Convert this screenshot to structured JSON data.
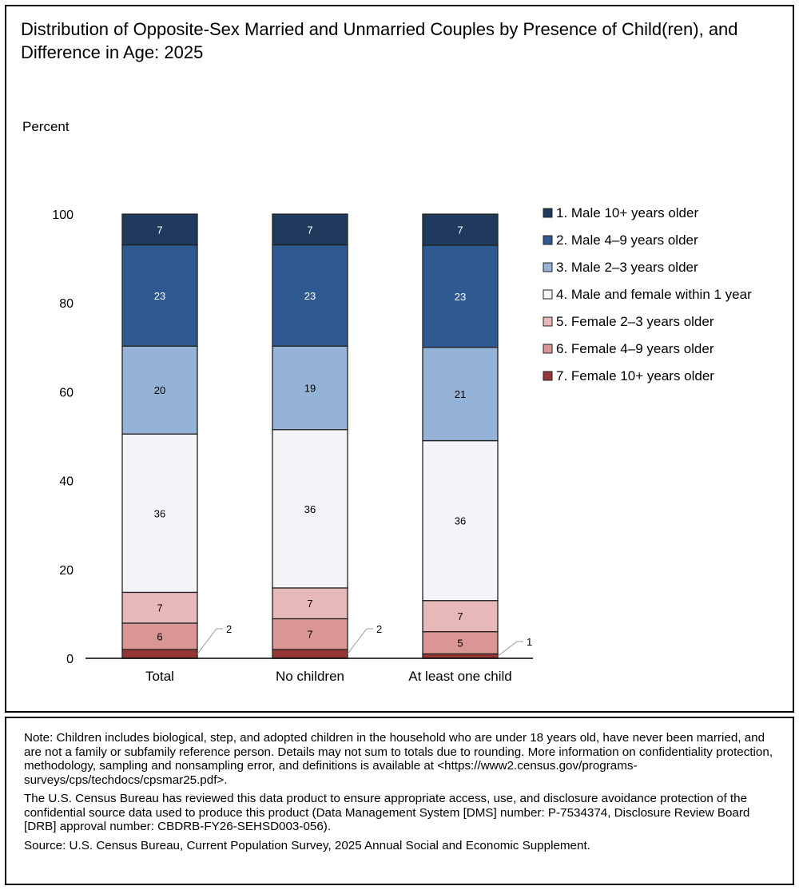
{
  "title": "Distribution of Opposite-Sex Married and Unmarried Couples by Presence of Child(ren), and Difference in Age: 2025",
  "notes": [
    "Note: Children includes biological, step, and adopted children in the household who are under 18 years old, have never been married, and are not a family or subfamily reference person. Details may not sum to totals due to rounding. More information on confidentiality protection, methodology, sampling and nonsampling error, and definitions is available at <https://www2.census.gov/programs-surveys/cps/techdocs/cpsmar25.pdf>.",
    "The U.S. Census Bureau has reviewed this data product to ensure appropriate access, use, and disclosure avoidance protection of the confidential source data used to produce this product (Data Management System [DMS] number: P-7534374, Disclosure Review Board [DRB] approval number: CBDRB-FY26-SEHSD003-056).",
    "Source: U.S. Census Bureau, Current Population Survey, 2025 Annual Social and Economic Supplement."
  ],
  "chart_data": {
    "type": "bar",
    "stacked": true,
    "title": "Distribution of Opposite-Sex Married and Unmarried Couples by Presence of Child(ren), and Difference in Age: 2025",
    "ylabel": "Percent",
    "ylim": [
      0,
      100
    ],
    "yticks": [
      "0",
      "20",
      "40",
      "60",
      "80",
      "100"
    ],
    "categories": [
      "Total",
      "No children",
      "At least one child"
    ],
    "legend_position": "right",
    "grid": false,
    "series": [
      {
        "name": "7. Female 10+ years older",
        "color": "#953735",
        "values": [
          2,
          2,
          1
        ]
      },
      {
        "name": "6. Female 4–9 years older",
        "color": "#d99694",
        "values": [
          6,
          7,
          5
        ]
      },
      {
        "name": "5. Female 2–3 years older",
        "color": "#e6b9b8",
        "values": [
          7,
          7,
          7
        ]
      },
      {
        "name": "4. Male and female within 1 year",
        "color": "#f2f4f7",
        "values": [
          36,
          36,
          36
        ]
      },
      {
        "name": "3. Male 2–3 years older",
        "color": "#95b3d7",
        "values": [
          20,
          19,
          21
        ]
      },
      {
        "name": "2. Male 4–9 years older",
        "color": "#2f5a91",
        "values": [
          23,
          23,
          23
        ]
      },
      {
        "name": "1. Male 10+ years older",
        "color": "#1f3a5c",
        "values": [
          7,
          7,
          7
        ]
      }
    ]
  }
}
